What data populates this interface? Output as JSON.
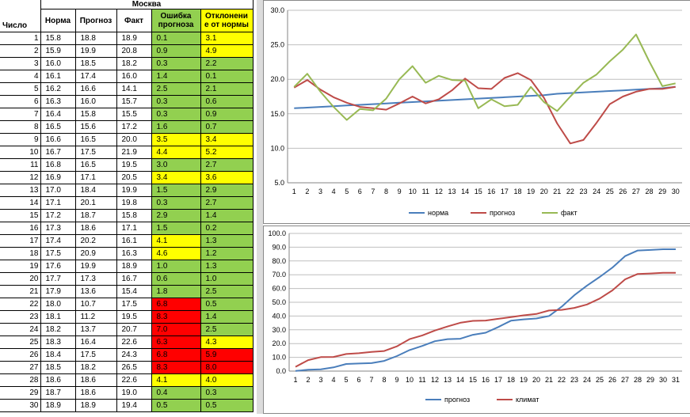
{
  "table": {
    "city": "Москва",
    "headers": {
      "day": "Число",
      "norm": "Норма",
      "forecast": "Прогноз",
      "fact": "Факт",
      "error_l1": "Ошибка",
      "error_l2": "прогноза",
      "dev_l1": "Отклонени",
      "dev_l2": "е от нормы"
    },
    "rows": [
      {
        "day": "1",
        "norm": "15.8",
        "forecast": "18.8",
        "fact": "18.9",
        "error": "0.1",
        "err_color": "green",
        "dev": "3.1",
        "dev_color": "yellow"
      },
      {
        "day": "2",
        "norm": "15.9",
        "forecast": "19.9",
        "fact": "20.8",
        "error": "0.9",
        "err_color": "green",
        "dev": "4.9",
        "dev_color": "yellow"
      },
      {
        "day": "3",
        "norm": "16.0",
        "forecast": "18.5",
        "fact": "18.2",
        "error": "0.3",
        "err_color": "green",
        "dev": "2.2",
        "dev_color": "green"
      },
      {
        "day": "4",
        "norm": "16.1",
        "forecast": "17.4",
        "fact": "16.0",
        "error": "1.4",
        "err_color": "green",
        "dev": "0.1",
        "dev_color": "green"
      },
      {
        "day": "5",
        "norm": "16.2",
        "forecast": "16.6",
        "fact": "14.1",
        "error": "2.5",
        "err_color": "green",
        "dev": "2.1",
        "dev_color": "green"
      },
      {
        "day": "6",
        "norm": "16.3",
        "forecast": "16.0",
        "fact": "15.7",
        "error": "0.3",
        "err_color": "green",
        "dev": "0.6",
        "dev_color": "green"
      },
      {
        "day": "7",
        "norm": "16.4",
        "forecast": "15.8",
        "fact": "15.5",
        "error": "0.3",
        "err_color": "green",
        "dev": "0.9",
        "dev_color": "green"
      },
      {
        "day": "8",
        "norm": "16.5",
        "forecast": "15.6",
        "fact": "17.2",
        "error": "1.6",
        "err_color": "green",
        "dev": "0.7",
        "dev_color": "green"
      },
      {
        "day": "9",
        "norm": "16.6",
        "forecast": "16.5",
        "fact": "20.0",
        "error": "3.5",
        "err_color": "yellow",
        "dev": "3.4",
        "dev_color": "yellow"
      },
      {
        "day": "10",
        "norm": "16.7",
        "forecast": "17.5",
        "fact": "21.9",
        "error": "4.4",
        "err_color": "yellow",
        "dev": "5.2",
        "dev_color": "yellow"
      },
      {
        "day": "11",
        "norm": "16.8",
        "forecast": "16.5",
        "fact": "19.5",
        "error": "3.0",
        "err_color": "green",
        "dev": "2.7",
        "dev_color": "green"
      },
      {
        "day": "12",
        "norm": "16.9",
        "forecast": "17.1",
        "fact": "20.5",
        "error": "3.4",
        "err_color": "yellow",
        "dev": "3.6",
        "dev_color": "yellow"
      },
      {
        "day": "13",
        "norm": "17.0",
        "forecast": "18.4",
        "fact": "19.9",
        "error": "1.5",
        "err_color": "green",
        "dev": "2.9",
        "dev_color": "green"
      },
      {
        "day": "14",
        "norm": "17.1",
        "forecast": "20.1",
        "fact": "19.8",
        "error": "0.3",
        "err_color": "green",
        "dev": "2.7",
        "dev_color": "green"
      },
      {
        "day": "15",
        "norm": "17.2",
        "forecast": "18.7",
        "fact": "15.8",
        "error": "2.9",
        "err_color": "green",
        "dev": "1.4",
        "dev_color": "green"
      },
      {
        "day": "16",
        "norm": "17.3",
        "forecast": "18.6",
        "fact": "17.1",
        "error": "1.5",
        "err_color": "green",
        "dev": "0.2",
        "dev_color": "green"
      },
      {
        "day": "17",
        "norm": "17.4",
        "forecast": "20.2",
        "fact": "16.1",
        "error": "4.1",
        "err_color": "yellow",
        "dev": "1.3",
        "dev_color": "green"
      },
      {
        "day": "18",
        "norm": "17.5",
        "forecast": "20.9",
        "fact": "16.3",
        "error": "4.6",
        "err_color": "yellow",
        "dev": "1.2",
        "dev_color": "green"
      },
      {
        "day": "19",
        "norm": "17.6",
        "forecast": "19.9",
        "fact": "18.9",
        "error": "1.0",
        "err_color": "green",
        "dev": "1.3",
        "dev_color": "green"
      },
      {
        "day": "20",
        "norm": "17.7",
        "forecast": "17.3",
        "fact": "16.7",
        "error": "0.6",
        "err_color": "green",
        "dev": "1.0",
        "dev_color": "green"
      },
      {
        "day": "21",
        "norm": "17.9",
        "forecast": "13.6",
        "fact": "15.4",
        "error": "1.8",
        "err_color": "green",
        "dev": "2.5",
        "dev_color": "green"
      },
      {
        "day": "22",
        "norm": "18.0",
        "forecast": "10.7",
        "fact": "17.5",
        "error": "6.8",
        "err_color": "red",
        "dev": "0.5",
        "dev_color": "green"
      },
      {
        "day": "23",
        "norm": "18.1",
        "forecast": "11.2",
        "fact": "19.5",
        "error": "8.3",
        "err_color": "red",
        "dev": "1.4",
        "dev_color": "green"
      },
      {
        "day": "24",
        "norm": "18.2",
        "forecast": "13.7",
        "fact": "20.7",
        "error": "7.0",
        "err_color": "red",
        "dev": "2.5",
        "dev_color": "green"
      },
      {
        "day": "25",
        "norm": "18.3",
        "forecast": "16.4",
        "fact": "22.6",
        "error": "6.3",
        "err_color": "red",
        "dev": "4.3",
        "dev_color": "yellow"
      },
      {
        "day": "26",
        "norm": "18.4",
        "forecast": "17.5",
        "fact": "24.3",
        "error": "6.8",
        "err_color": "red",
        "dev": "5.9",
        "dev_color": "red"
      },
      {
        "day": "27",
        "norm": "18.5",
        "forecast": "18.2",
        "fact": "26.5",
        "error": "8.3",
        "err_color": "red",
        "dev": "8.0",
        "dev_color": "red"
      },
      {
        "day": "28",
        "norm": "18.6",
        "forecast": "18.6",
        "fact": "22.6",
        "error": "4.1",
        "err_color": "yellow",
        "dev": "4.0",
        "dev_color": "yellow"
      },
      {
        "day": "29",
        "norm": "18.7",
        "forecast": "18.6",
        "fact": "19.0",
        "error": "0.4",
        "err_color": "green",
        "dev": "0.3",
        "dev_color": "green"
      },
      {
        "day": "30",
        "norm": "18.9",
        "forecast": "18.9",
        "fact": "19.4",
        "error": "0.5",
        "err_color": "green",
        "dev": "0.5",
        "dev_color": "green"
      }
    ]
  },
  "colors": {
    "green": "#92d050",
    "yellow": "#ffff00",
    "red": "#ff0000",
    "norm_line": "#4a7ebb",
    "forecast_line": "#be4b48",
    "fact_line": "#98b954",
    "grid": "#bfbfbf"
  },
  "chart_data": [
    {
      "type": "line",
      "x": [
        1,
        2,
        3,
        4,
        5,
        6,
        7,
        8,
        9,
        10,
        11,
        12,
        13,
        14,
        15,
        16,
        17,
        18,
        19,
        20,
        21,
        22,
        23,
        24,
        25,
        26,
        27,
        28,
        29,
        30
      ],
      "ylim": [
        5.0,
        30.0
      ],
      "yticks": [
        "5.0",
        "10.0",
        "15.0",
        "20.0",
        "25.0",
        "30.0"
      ],
      "grid": true,
      "legend_position": "bottom",
      "series": [
        {
          "name": "норма",
          "color": "#4a7ebb",
          "values": [
            15.8,
            15.9,
            16.0,
            16.1,
            16.2,
            16.3,
            16.4,
            16.5,
            16.6,
            16.7,
            16.8,
            16.9,
            17.0,
            17.1,
            17.2,
            17.3,
            17.4,
            17.5,
            17.6,
            17.7,
            17.9,
            18.0,
            18.1,
            18.2,
            18.3,
            18.4,
            18.5,
            18.6,
            18.7,
            18.9
          ]
        },
        {
          "name": "прогноз",
          "color": "#be4b48",
          "values": [
            18.8,
            19.9,
            18.5,
            17.4,
            16.6,
            16.0,
            15.8,
            15.6,
            16.5,
            17.5,
            16.5,
            17.1,
            18.4,
            20.1,
            18.7,
            18.6,
            20.2,
            20.9,
            19.9,
            17.3,
            13.6,
            10.7,
            11.2,
            13.7,
            16.4,
            17.5,
            18.2,
            18.6,
            18.6,
            18.9
          ]
        },
        {
          "name": "факт",
          "color": "#98b954",
          "values": [
            18.9,
            20.8,
            18.2,
            16.0,
            14.1,
            15.7,
            15.5,
            17.2,
            20.0,
            21.9,
            19.5,
            20.5,
            19.9,
            19.8,
            15.8,
            17.1,
            16.1,
            16.3,
            18.9,
            16.7,
            15.4,
            17.5,
            19.5,
            20.7,
            22.6,
            24.3,
            26.5,
            22.6,
            19.0,
            19.4
          ]
        }
      ]
    },
    {
      "type": "line",
      "x": [
        1,
        2,
        3,
        4,
        5,
        6,
        7,
        8,
        9,
        10,
        11,
        12,
        13,
        14,
        15,
        16,
        17,
        18,
        19,
        20,
        21,
        22,
        23,
        24,
        25,
        26,
        27,
        28,
        29,
        30,
        31
      ],
      "ylim": [
        0.0,
        100.0
      ],
      "yticks": [
        "0.0",
        "10.0",
        "20.0",
        "30.0",
        "40.0",
        "50.0",
        "60.0",
        "70.0",
        "80.0",
        "90.0",
        "100.0"
      ],
      "grid": true,
      "legend_position": "bottom",
      "series": [
        {
          "name": "прогноз",
          "color": "#4a7ebb",
          "values": [
            0.1,
            1.0,
            1.3,
            2.7,
            5.2,
            5.5,
            5.8,
            7.4,
            10.9,
            15.3,
            18.3,
            21.7,
            23.2,
            23.5,
            26.4,
            27.9,
            32.0,
            36.6,
            37.6,
            38.2,
            40.0,
            46.8,
            55.1,
            62.1,
            68.4,
            75.2,
            83.5,
            87.6,
            88.0,
            88.5,
            88.5
          ]
        },
        {
          "name": "климат",
          "color": "#be4b48",
          "values": [
            3.1,
            8.0,
            10.2,
            10.3,
            12.4,
            13.0,
            13.9,
            14.6,
            18.0,
            23.2,
            25.9,
            29.5,
            32.4,
            35.1,
            36.5,
            36.7,
            38.0,
            39.2,
            40.5,
            41.5,
            44.0,
            44.5,
            45.9,
            48.4,
            52.7,
            58.6,
            66.6,
            70.6,
            70.9,
            71.4,
            71.4
          ]
        }
      ]
    }
  ]
}
